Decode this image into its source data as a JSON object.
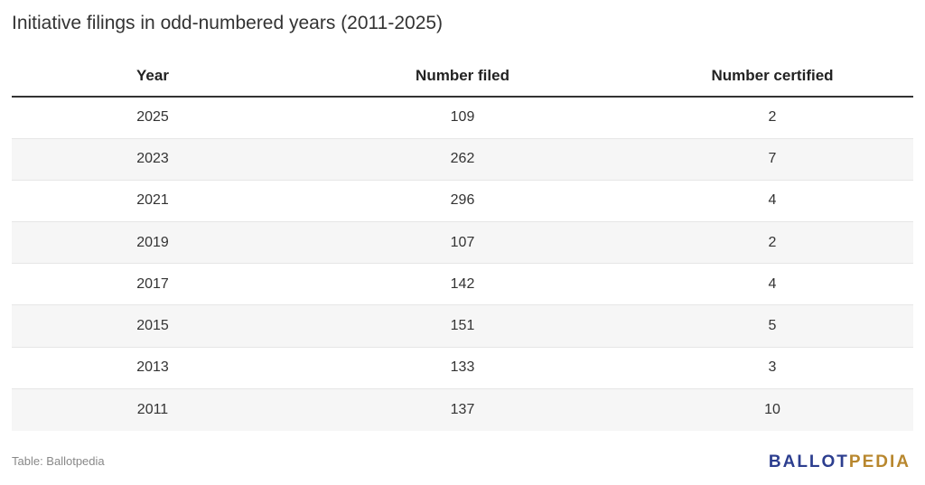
{
  "chart_data": {
    "type": "table",
    "title": "Initiative filings in odd-numbered years (2011-2025)",
    "columns": [
      "Year",
      "Number filed",
      "Number certified"
    ],
    "rows": [
      [
        "2025",
        "109",
        "2"
      ],
      [
        "2023",
        "262",
        "7"
      ],
      [
        "2021",
        "296",
        "4"
      ],
      [
        "2019",
        "107",
        "2"
      ],
      [
        "2017",
        "142",
        "4"
      ],
      [
        "2015",
        "151",
        "5"
      ],
      [
        "2013",
        "133",
        "3"
      ],
      [
        "2011",
        "137",
        "10"
      ]
    ],
    "striped_rows": true
  },
  "footer": {
    "source": "Table: Ballotpedia",
    "logo": {
      "part1": "BALLOT",
      "part2": "PEDIA"
    }
  },
  "colors": {
    "logo_primary": "#2c3e8f",
    "logo_accent": "#b8872e",
    "stripe": "#f6f6f6"
  }
}
